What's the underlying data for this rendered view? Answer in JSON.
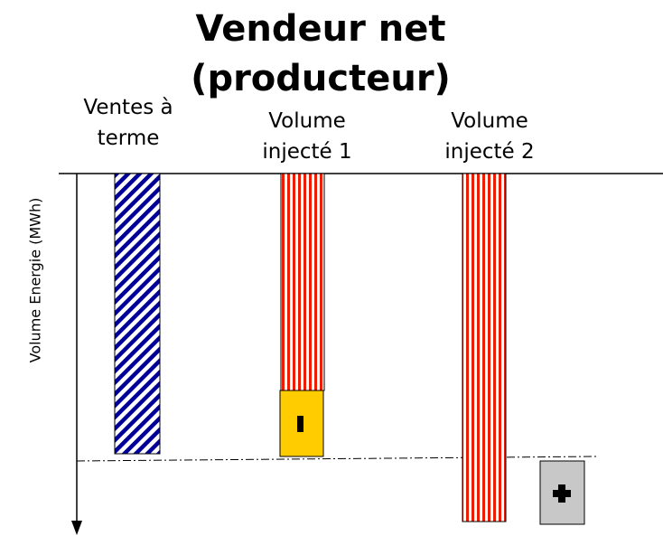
{
  "title": [
    "Vendeur net",
    "(producteur)"
  ],
  "axis_label": "Volume Energie (MWh)",
  "columns": [
    {
      "label": [
        "Ventes à",
        "terme"
      ]
    },
    {
      "label": [
        "Volume",
        "injecté 1"
      ]
    },
    {
      "label": [
        "Volume",
        "injecté 2"
      ]
    }
  ]
}
